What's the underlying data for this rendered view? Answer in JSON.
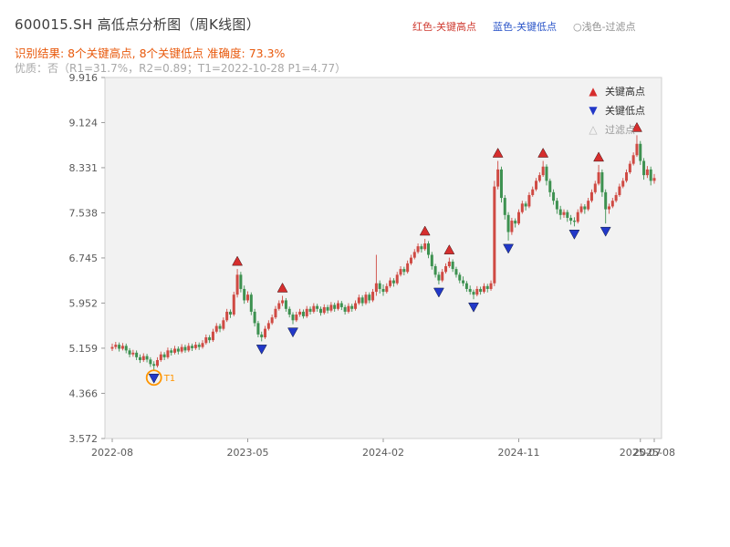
{
  "header": {
    "title": "600015.SH 高低点分析图（周K线图）",
    "legend": [
      {
        "label": "红色-关键高点",
        "color": "#cf3b31"
      },
      {
        "label": "蓝色-关键低点",
        "color": "#2b55c8"
      },
      {
        "label": "○浅色-过滤点",
        "color": "#8f8f8f"
      }
    ],
    "result_line": "识别结果: 8个关键高点, 8个关键低点  准确度: 73.3%",
    "result_color": "#e8590c",
    "quality_line": "优质：否（R1=31.7%，R2=0.89；T1=2022-10-28 P1=4.77）",
    "quality_color": "#a8a8a8"
  },
  "chart_data": {
    "type": "candlestick",
    "symbol": "600015.SH",
    "frequency": "weekly",
    "title": "600015.SH 高低点分析图（周K线图）",
    "ylim": [
      3.572,
      9.916
    ],
    "y_ticks": [
      "3.572",
      "4.366",
      "5.159",
      "5.952",
      "6.745",
      "7.538",
      "8.331",
      "9.124",
      "9.916"
    ],
    "x_ticks": [
      {
        "label": "2022-08",
        "week": 0
      },
      {
        "label": "2023-05",
        "week": 39
      },
      {
        "label": "2024-02",
        "week": 78
      },
      {
        "label": "2024-11",
        "week": 117
      },
      {
        "label": "2025-07",
        "week": 152
      },
      {
        "label": "2025-08",
        "week": 156
      }
    ],
    "legend_items": [
      {
        "label": "关键高点",
        "glyph": "▲",
        "marker": "up-triangle",
        "color": "#d62e2e",
        "label_color": "#333333"
      },
      {
        "label": "关键低点",
        "glyph": "▼",
        "marker": "down-triangle",
        "color": "#2238c8",
        "label_color": "#333333"
      },
      {
        "label": "过滤点",
        "glyph": "△",
        "marker": "hollow-triangle",
        "color": "#bbbbbb",
        "label_color": "#999999"
      }
    ],
    "colors": {
      "up": "#cf4a43",
      "down": "#3d9150",
      "marker_high": "#d62e2e",
      "marker_low": "#2238c8",
      "t1": "#ff9500",
      "plot_bg": "#f2f2f2",
      "frame": "#d0d0d0",
      "tick_text": "#5a5a5a"
    },
    "key_highs": [
      {
        "week": 36,
        "price": 6.55
      },
      {
        "week": 49,
        "price": 6.08
      },
      {
        "week": 90,
        "price": 7.08
      },
      {
        "week": 97,
        "price": 6.75
      },
      {
        "week": 111,
        "price": 8.45
      },
      {
        "week": 124,
        "price": 8.45
      },
      {
        "week": 140,
        "price": 8.38
      },
      {
        "week": 151,
        "price": 8.9
      }
    ],
    "key_lows": [
      {
        "week": 12,
        "price": 4.77
      },
      {
        "week": 43,
        "price": 5.28
      },
      {
        "week": 52,
        "price": 5.58
      },
      {
        "week": 94,
        "price": 6.28
      },
      {
        "week": 104,
        "price": 6.02
      },
      {
        "week": 114,
        "price": 7.05
      },
      {
        "week": 133,
        "price": 7.3
      },
      {
        "week": 142,
        "price": 7.35
      }
    ],
    "t1_marker": {
      "week": 12,
      "price": 4.77,
      "label": "T1"
    },
    "candles": [
      [
        5.15,
        5.24,
        5.11,
        5.18
      ],
      [
        5.18,
        5.27,
        5.14,
        5.22
      ],
      [
        5.22,
        5.26,
        5.1,
        5.15
      ],
      [
        5.15,
        5.25,
        5.12,
        5.2
      ],
      [
        5.2,
        5.24,
        5.07,
        5.12
      ],
      [
        5.12,
        5.16,
        5.0,
        5.05
      ],
      [
        5.05,
        5.13,
        5.01,
        5.08
      ],
      [
        5.08,
        5.12,
        4.95,
        5.0
      ],
      [
        5.0,
        5.05,
        4.9,
        4.95
      ],
      [
        4.95,
        5.07,
        4.92,
        5.02
      ],
      [
        5.02,
        5.06,
        4.91,
        4.96
      ],
      [
        4.96,
        5.0,
        4.83,
        4.88
      ],
      [
        4.88,
        4.93,
        4.77,
        4.85
      ],
      [
        4.85,
        5.0,
        4.82,
        4.95
      ],
      [
        4.95,
        5.1,
        4.92,
        5.05
      ],
      [
        5.05,
        5.09,
        4.95,
        5.0
      ],
      [
        5.0,
        5.17,
        4.97,
        5.12
      ],
      [
        5.12,
        5.16,
        5.03,
        5.08
      ],
      [
        5.08,
        5.2,
        5.05,
        5.15
      ],
      [
        5.15,
        5.19,
        5.05,
        5.1
      ],
      [
        5.1,
        5.23,
        5.07,
        5.18
      ],
      [
        5.18,
        5.22,
        5.08,
        5.12
      ],
      [
        5.12,
        5.25,
        5.09,
        5.2
      ],
      [
        5.2,
        5.24,
        5.11,
        5.16
      ],
      [
        5.16,
        5.27,
        5.13,
        5.22
      ],
      [
        5.22,
        5.26,
        5.13,
        5.18
      ],
      [
        5.18,
        5.3,
        5.15,
        5.25
      ],
      [
        5.25,
        5.4,
        5.22,
        5.35
      ],
      [
        5.35,
        5.39,
        5.25,
        5.3
      ],
      [
        5.3,
        5.5,
        5.27,
        5.45
      ],
      [
        5.45,
        5.6,
        5.42,
        5.55
      ],
      [
        5.55,
        5.59,
        5.44,
        5.5
      ],
      [
        5.5,
        5.7,
        5.47,
        5.65
      ],
      [
        5.65,
        5.85,
        5.62,
        5.8
      ],
      [
        5.8,
        5.84,
        5.69,
        5.75
      ],
      [
        5.75,
        6.15,
        5.72,
        6.1
      ],
      [
        6.1,
        6.55,
        6.05,
        6.45
      ],
      [
        6.45,
        6.5,
        6.14,
        6.2
      ],
      [
        6.2,
        6.26,
        5.94,
        6.0
      ],
      [
        6.0,
        6.16,
        5.96,
        6.1
      ],
      [
        6.1,
        6.14,
        5.74,
        5.8
      ],
      [
        5.8,
        5.85,
        5.54,
        5.6
      ],
      [
        5.6,
        5.64,
        5.35,
        5.4
      ],
      [
        5.4,
        5.45,
        5.28,
        5.35
      ],
      [
        5.35,
        5.55,
        5.32,
        5.5
      ],
      [
        5.5,
        5.65,
        5.47,
        5.6
      ],
      [
        5.6,
        5.75,
        5.57,
        5.7
      ],
      [
        5.7,
        5.9,
        5.67,
        5.85
      ],
      [
        5.85,
        6.0,
        5.82,
        5.95
      ],
      [
        5.95,
        6.08,
        5.9,
        6.0
      ],
      [
        6.0,
        6.04,
        5.8,
        5.85
      ],
      [
        5.85,
        5.89,
        5.7,
        5.75
      ],
      [
        5.75,
        5.79,
        5.58,
        5.65
      ],
      [
        5.65,
        5.8,
        5.62,
        5.75
      ],
      [
        5.75,
        5.85,
        5.71,
        5.8
      ],
      [
        5.8,
        5.84,
        5.68,
        5.72
      ],
      [
        5.72,
        5.9,
        5.69,
        5.85
      ],
      [
        5.85,
        5.89,
        5.75,
        5.8
      ],
      [
        5.8,
        5.95,
        5.77,
        5.9
      ],
      [
        5.9,
        5.94,
        5.8,
        5.85
      ],
      [
        5.85,
        5.89,
        5.73,
        5.78
      ],
      [
        5.78,
        5.93,
        5.75,
        5.88
      ],
      [
        5.88,
        5.92,
        5.77,
        5.82
      ],
      [
        5.82,
        5.97,
        5.79,
        5.92
      ],
      [
        5.92,
        5.96,
        5.8,
        5.85
      ],
      [
        5.85,
        6.0,
        5.82,
        5.95
      ],
      [
        5.95,
        5.99,
        5.83,
        5.88
      ],
      [
        5.88,
        5.92,
        5.75,
        5.8
      ],
      [
        5.8,
        5.95,
        5.77,
        5.9
      ],
      [
        5.9,
        5.94,
        5.8,
        5.85
      ],
      [
        5.85,
        6.0,
        5.82,
        5.95
      ],
      [
        5.95,
        6.1,
        5.92,
        6.05
      ],
      [
        6.05,
        6.09,
        5.9,
        5.95
      ],
      [
        5.95,
        6.15,
        5.92,
        6.1
      ],
      [
        6.1,
        6.14,
        5.95,
        6.0
      ],
      [
        6.0,
        6.2,
        5.97,
        6.15
      ],
      [
        6.15,
        6.8,
        6.08,
        6.3
      ],
      [
        6.3,
        6.35,
        6.12,
        6.2
      ],
      [
        6.2,
        6.28,
        6.08,
        6.15
      ],
      [
        6.15,
        6.3,
        6.12,
        6.25
      ],
      [
        6.25,
        6.4,
        6.22,
        6.35
      ],
      [
        6.35,
        6.39,
        6.24,
        6.3
      ],
      [
        6.3,
        6.5,
        6.27,
        6.45
      ],
      [
        6.45,
        6.6,
        6.42,
        6.55
      ],
      [
        6.55,
        6.59,
        6.44,
        6.5
      ],
      [
        6.5,
        6.7,
        6.47,
        6.65
      ],
      [
        6.65,
        6.8,
        6.62,
        6.75
      ],
      [
        6.75,
        6.9,
        6.72,
        6.85
      ],
      [
        6.85,
        7.0,
        6.82,
        6.95
      ],
      [
        6.95,
        6.99,
        6.84,
        6.9
      ],
      [
        6.9,
        7.08,
        6.87,
        7.0
      ],
      [
        7.0,
        7.04,
        6.74,
        6.8
      ],
      [
        6.8,
        6.85,
        6.54,
        6.6
      ],
      [
        6.6,
        6.64,
        6.4,
        6.45
      ],
      [
        6.45,
        6.5,
        6.28,
        6.35
      ],
      [
        6.35,
        6.55,
        6.32,
        6.5
      ],
      [
        6.5,
        6.65,
        6.47,
        6.6
      ],
      [
        6.6,
        6.75,
        6.57,
        6.68
      ],
      [
        6.68,
        6.72,
        6.5,
        6.55
      ],
      [
        6.55,
        6.59,
        6.4,
        6.45
      ],
      [
        6.45,
        6.49,
        6.3,
        6.35
      ],
      [
        6.35,
        6.42,
        6.25,
        6.3
      ],
      [
        6.3,
        6.34,
        6.15,
        6.2
      ],
      [
        6.2,
        6.26,
        6.1,
        6.15
      ],
      [
        6.15,
        6.19,
        6.02,
        6.1
      ],
      [
        6.1,
        6.25,
        6.07,
        6.2
      ],
      [
        6.2,
        6.24,
        6.1,
        6.15
      ],
      [
        6.15,
        6.3,
        6.12,
        6.25
      ],
      [
        6.25,
        6.29,
        6.14,
        6.2
      ],
      [
        6.2,
        6.35,
        6.17,
        6.3
      ],
      [
        6.3,
        8.1,
        6.25,
        8.0
      ],
      [
        8.0,
        8.45,
        7.95,
        8.3
      ],
      [
        8.3,
        8.35,
        7.72,
        7.8
      ],
      [
        7.8,
        7.85,
        7.42,
        7.5
      ],
      [
        7.5,
        7.55,
        7.05,
        7.2
      ],
      [
        7.2,
        7.45,
        7.15,
        7.4
      ],
      [
        7.4,
        7.44,
        7.28,
        7.35
      ],
      [
        7.35,
        7.6,
        7.32,
        7.55
      ],
      [
        7.55,
        7.75,
        7.52,
        7.7
      ],
      [
        7.7,
        7.74,
        7.58,
        7.65
      ],
      [
        7.65,
        7.9,
        7.62,
        7.85
      ],
      [
        7.85,
        8.0,
        7.82,
        7.95
      ],
      [
        7.95,
        8.15,
        7.92,
        8.1
      ],
      [
        8.1,
        8.25,
        8.07,
        8.2
      ],
      [
        8.2,
        8.45,
        8.17,
        8.35
      ],
      [
        8.35,
        8.39,
        8.02,
        8.1
      ],
      [
        8.1,
        8.14,
        7.82,
        7.9
      ],
      [
        7.9,
        7.95,
        7.68,
        7.75
      ],
      [
        7.75,
        7.8,
        7.52,
        7.6
      ],
      [
        7.6,
        7.66,
        7.42,
        7.5
      ],
      [
        7.5,
        7.6,
        7.45,
        7.55
      ],
      [
        7.55,
        7.59,
        7.38,
        7.45
      ],
      [
        7.45,
        7.5,
        7.33,
        7.4
      ],
      [
        7.4,
        7.46,
        7.3,
        7.38
      ],
      [
        7.38,
        7.6,
        7.35,
        7.55
      ],
      [
        7.55,
        7.7,
        7.52,
        7.65
      ],
      [
        7.65,
        7.69,
        7.52,
        7.6
      ],
      [
        7.6,
        7.8,
        7.57,
        7.75
      ],
      [
        7.75,
        7.95,
        7.72,
        7.9
      ],
      [
        7.9,
        8.1,
        7.87,
        8.05
      ],
      [
        8.05,
        8.38,
        8.02,
        8.25
      ],
      [
        8.25,
        8.3,
        7.82,
        7.9
      ],
      [
        7.9,
        7.95,
        7.35,
        7.6
      ],
      [
        7.6,
        7.7,
        7.52,
        7.65
      ],
      [
        7.65,
        7.8,
        7.62,
        7.75
      ],
      [
        7.75,
        7.9,
        7.72,
        7.85
      ],
      [
        7.85,
        8.05,
        7.82,
        8.0
      ],
      [
        8.0,
        8.15,
        7.97,
        8.1
      ],
      [
        8.1,
        8.3,
        8.07,
        8.25
      ],
      [
        8.25,
        8.45,
        8.22,
        8.4
      ],
      [
        8.4,
        8.6,
        8.37,
        8.55
      ],
      [
        8.55,
        8.9,
        8.52,
        8.75
      ],
      [
        8.75,
        8.8,
        8.38,
        8.45
      ],
      [
        8.45,
        8.5,
        8.12,
        8.2
      ],
      [
        8.2,
        8.36,
        8.15,
        8.3
      ],
      [
        8.3,
        8.35,
        8.02,
        8.1
      ],
      [
        8.1,
        8.22,
        8.05,
        8.15
      ]
    ]
  }
}
